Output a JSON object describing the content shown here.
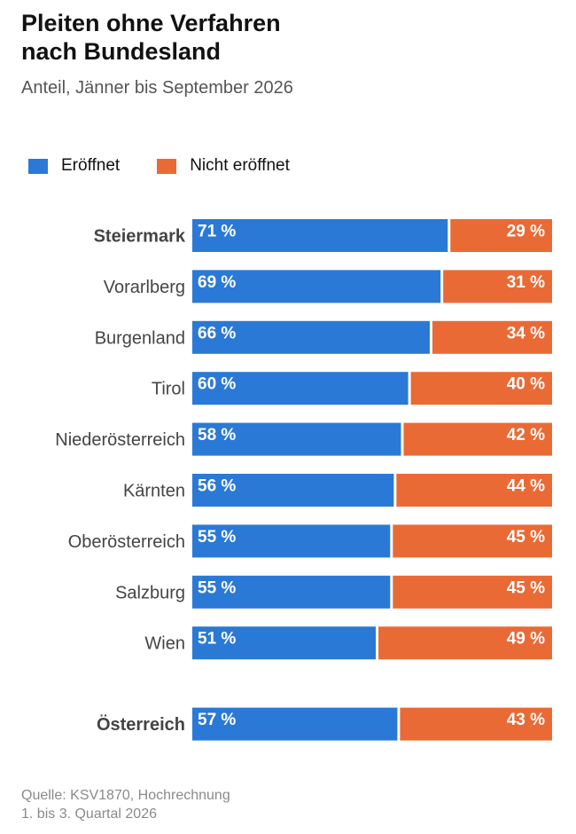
{
  "header": {
    "title_line1": "Pleiten ohne Verfahren",
    "title_line2": "nach Bundesland",
    "subtitle": "Anteil, Jänner bis September 2026"
  },
  "legend": [
    {
      "label": "Eröffnet",
      "color": "#2b79d6"
    },
    {
      "label": "Nicht eröffnet",
      "color": "#ea6a36"
    }
  ],
  "footer": {
    "source_line1": "Quelle: KSV1870, Hochrechnung",
    "source_line2": "1. bis 3. Quartal 2026"
  },
  "chart_data": {
    "type": "bar",
    "orientation": "horizontal",
    "stacked": true,
    "title": "Pleiten ohne Verfahren nach Bundesland",
    "subtitle": "Anteil, Jänner bis September 2026",
    "xlim": [
      0,
      100
    ],
    "grid": false,
    "legend_position": "top-left",
    "value_suffix": " %",
    "categories": [
      "Steiermark",
      "Vorarlberg",
      "Burgenland",
      "Tirol",
      "Niederösterreich",
      "Kärnten",
      "Oberösterreich",
      "Salzburg",
      "Wien",
      "Österreich"
    ],
    "bold_categories": [
      "Steiermark",
      "Österreich"
    ],
    "series": [
      {
        "name": "Eröffnet",
        "color": "#2b79d6",
        "values": [
          71,
          69,
          66,
          60,
          58,
          56,
          55,
          55,
          51,
          57
        ]
      },
      {
        "name": "Nicht eröffnet",
        "color": "#ea6a36",
        "values": [
          29,
          31,
          34,
          40,
          42,
          44,
          45,
          45,
          49,
          43
        ]
      }
    ]
  }
}
